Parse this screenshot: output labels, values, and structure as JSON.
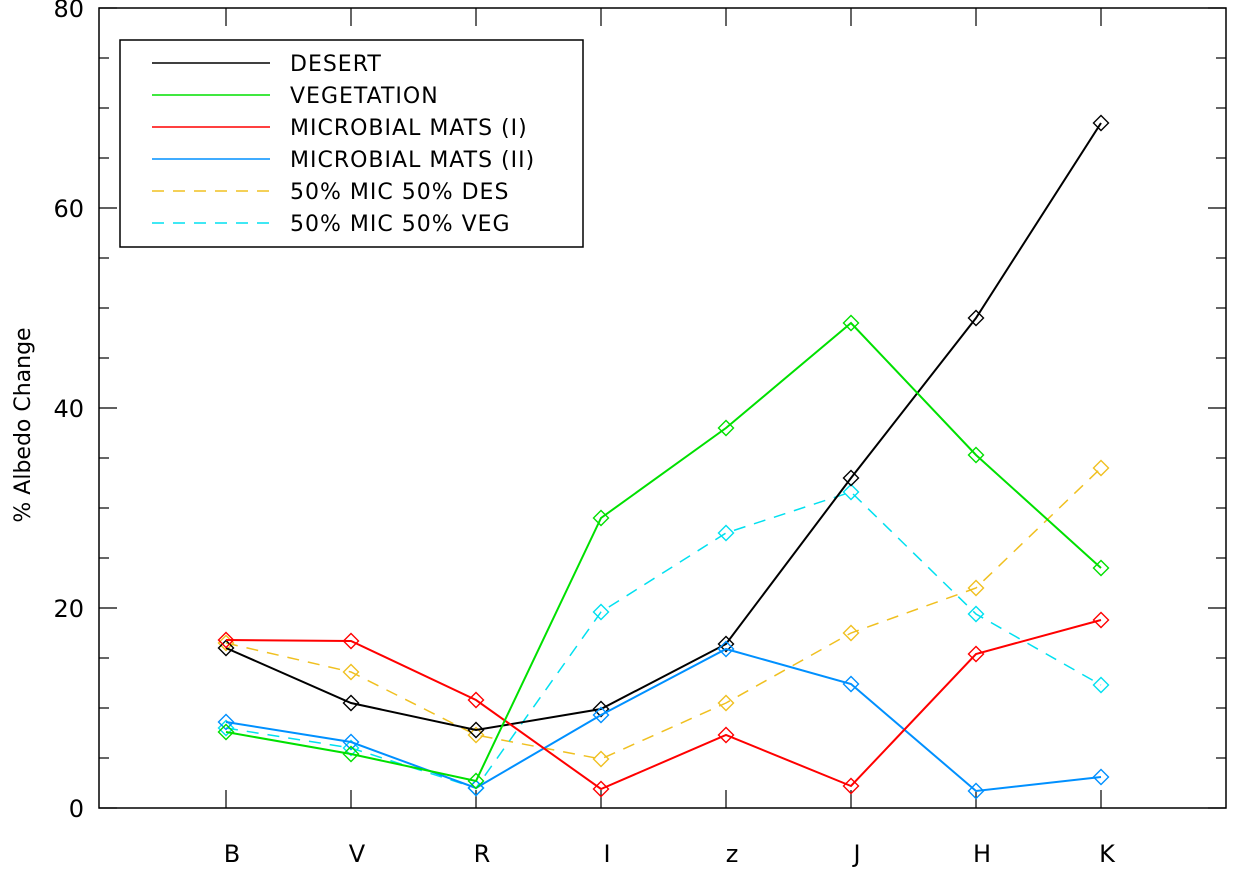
{
  "chart_data": {
    "type": "line",
    "title": "",
    "xlabel": "",
    "ylabel": "% Albedo Change",
    "categories": [
      "B",
      "V",
      "R",
      "I",
      "z",
      "J",
      "H",
      "K"
    ],
    "ylim": [
      0,
      80
    ],
    "yticks": [
      0,
      20,
      40,
      60,
      80
    ],
    "grid": false,
    "legend_position": "top-left",
    "series": [
      {
        "name": "DESERT",
        "color": "#000000",
        "dash": false,
        "values": [
          16.0,
          10.5,
          7.8,
          9.9,
          16.4,
          33.0,
          49.0,
          68.5
        ]
      },
      {
        "name": "VEGETATION",
        "color": "#00e000",
        "dash": false,
        "values": [
          7.6,
          5.4,
          2.7,
          29.0,
          38.0,
          48.5,
          35.3,
          24.0
        ]
      },
      {
        "name": "MICROBIAL MATS (I)",
        "color": "#ff0000",
        "dash": false,
        "values": [
          16.8,
          16.7,
          10.8,
          1.9,
          7.3,
          2.2,
          15.4,
          18.8
        ]
      },
      {
        "name": "MICROBIAL MATS (II)",
        "color": "#0090ff",
        "dash": false,
        "values": [
          8.6,
          6.6,
          2.0,
          9.3,
          15.9,
          12.4,
          1.7,
          3.1
        ]
      },
      {
        "name": "50% MIC 50% DES",
        "color": "#f0c020",
        "dash": true,
        "values": [
          16.5,
          13.6,
          7.3,
          4.9,
          10.5,
          17.5,
          22.0,
          34.0
        ]
      },
      {
        "name": "50% MIC 50% VEG",
        "color": "#00e0f0",
        "dash": true,
        "values": [
          8.0,
          6.0,
          2.0,
          19.6,
          27.5,
          31.6,
          19.4,
          12.3
        ]
      }
    ]
  }
}
